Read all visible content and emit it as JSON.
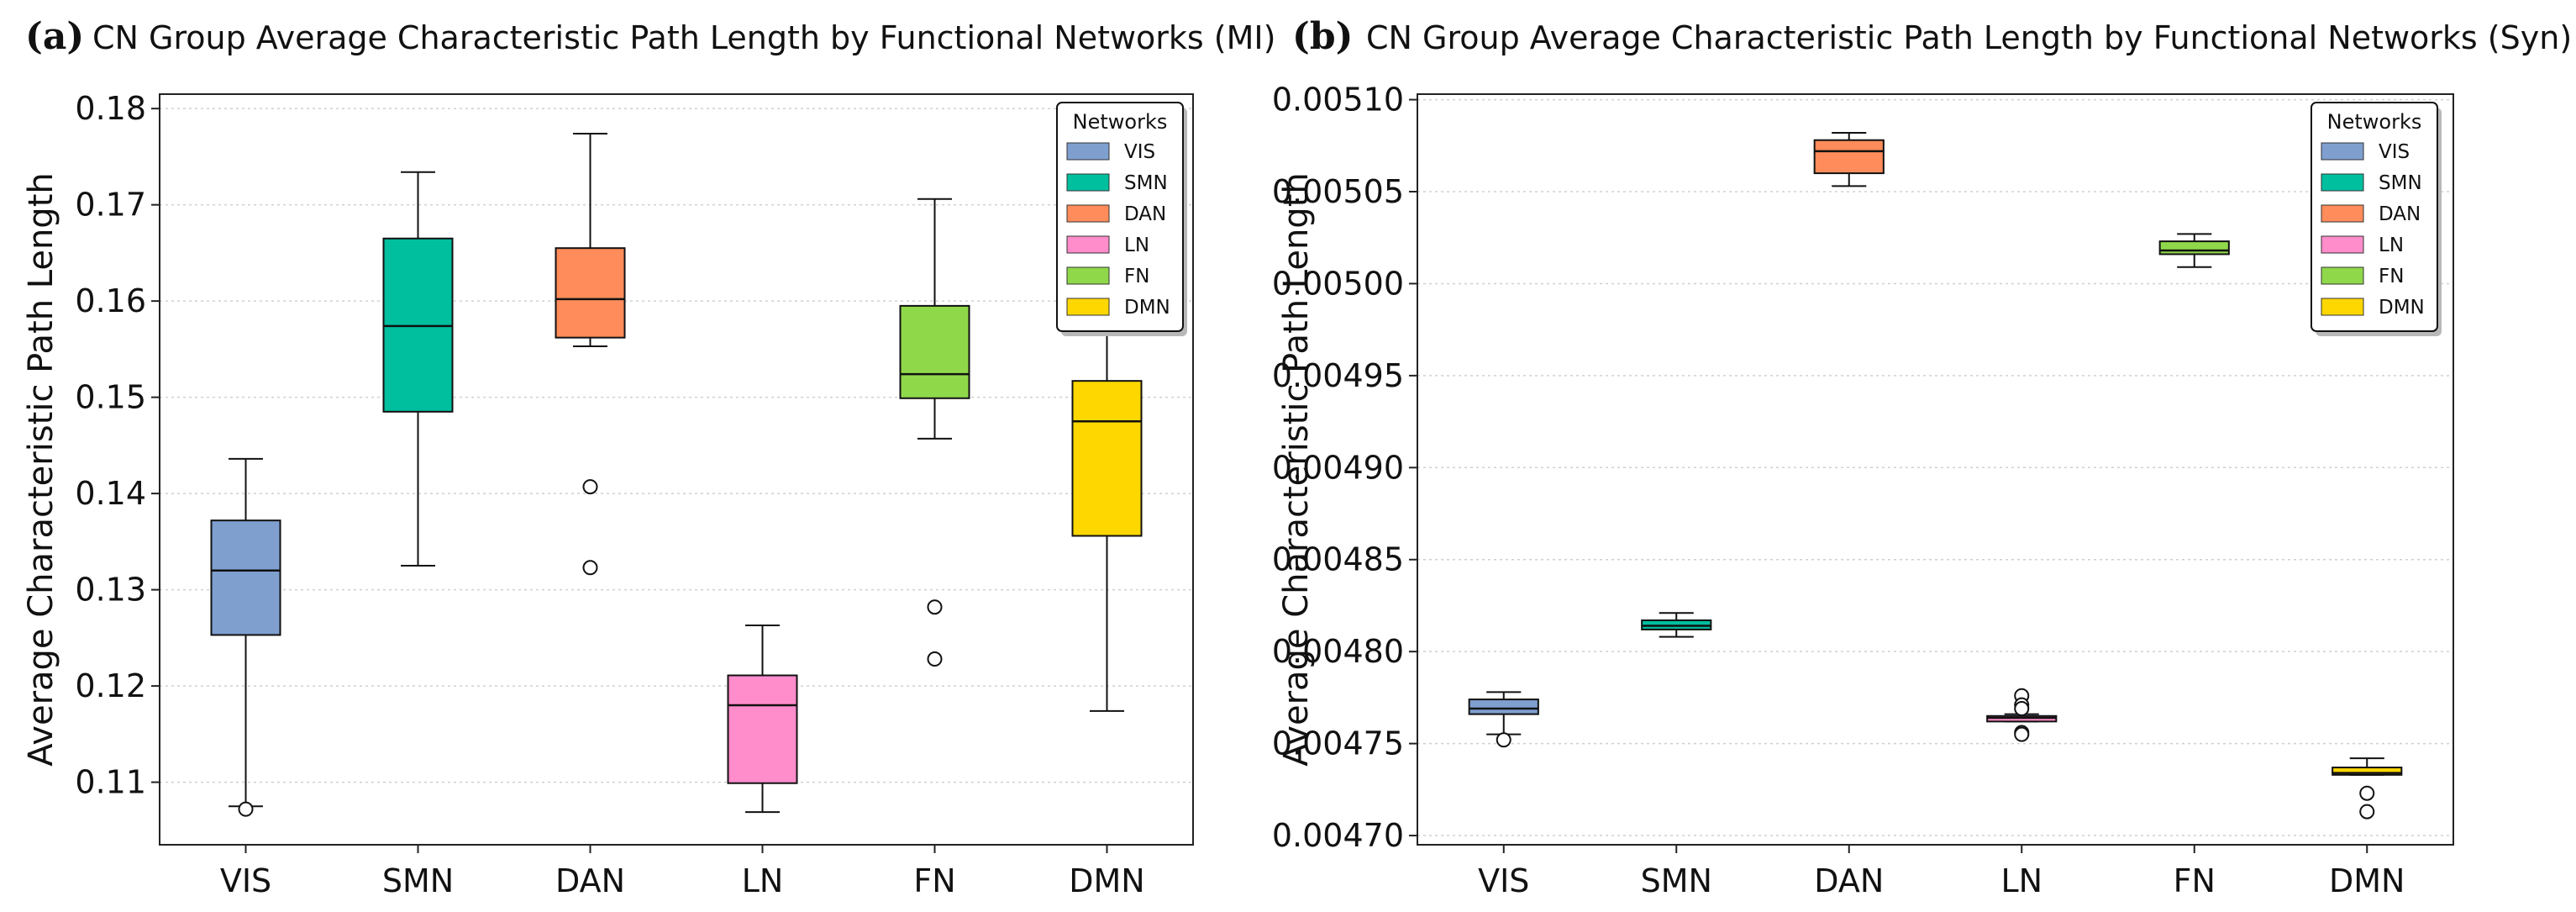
{
  "chart_data": [
    {
      "panel": "(a)",
      "type": "box",
      "title": "CN Group Average Characteristic Path Length by Functional Networks (MI)",
      "xlabel": "",
      "ylabel": "Average Characteristic Path Length",
      "ylim": [
        0.1035,
        0.1815
      ],
      "yticks": [
        "0.11",
        "0.12",
        "0.13",
        "0.14",
        "0.15",
        "0.16",
        "0.17",
        "0.18"
      ],
      "ytick_values": [
        0.11,
        0.12,
        0.13,
        0.14,
        0.15,
        0.16,
        0.17,
        0.18
      ],
      "grid": "horizontal dotted",
      "legend": {
        "title": "Networks",
        "placement": "top-right"
      },
      "categories": [
        "VIS",
        "SMN",
        "DAN",
        "LN",
        "FN",
        "DMN"
      ],
      "colors": [
        "#7f9fcf",
        "#00bf9f",
        "#ff8c5a",
        "#ff8ccb",
        "#8fd84a",
        "#ffd700"
      ],
      "boxes": [
        {
          "whisker_low": 0.1075,
          "q1": 0.1253,
          "median": 0.132,
          "q3": 0.1372,
          "whisker_high": 0.1436,
          "outliers": [
            0.1072
          ]
        },
        {
          "whisker_low": 0.1325,
          "q1": 0.1485,
          "median": 0.1574,
          "q3": 0.1665,
          "whisker_high": 0.1734,
          "outliers": []
        },
        {
          "whisker_low": 0.1553,
          "q1": 0.1562,
          "median": 0.1602,
          "q3": 0.1655,
          "whisker_high": 0.1774,
          "outliers": [
            0.1407,
            0.1323
          ]
        },
        {
          "whisker_low": 0.1069,
          "q1": 0.1099,
          "median": 0.118,
          "q3": 0.1211,
          "whisker_high": 0.1263,
          "outliers": []
        },
        {
          "whisker_low": 0.1457,
          "q1": 0.1499,
          "median": 0.1524,
          "q3": 0.1595,
          "whisker_high": 0.1706,
          "outliers": [
            0.1282,
            0.1228
          ]
        },
        {
          "whisker_low": 0.1174,
          "q1": 0.1356,
          "median": 0.1475,
          "q3": 0.1517,
          "whisker_high": 0.164,
          "outliers": []
        }
      ]
    },
    {
      "panel": "(b)",
      "type": "box",
      "title": "CN Group Average Characteristic Path Length by Functional Networks (Syn)",
      "xlabel": "",
      "ylabel": "Average Characteristic Path Length",
      "ylim": [
        0.004695,
        0.005103
      ],
      "yticks": [
        "0.00470",
        "0.00475",
        "0.00480",
        "0.00485",
        "0.00490",
        "0.00495",
        "0.00500",
        "0.00505",
        "0.00510"
      ],
      "ytick_values": [
        0.0047,
        0.00475,
        0.0048,
        0.00485,
        0.0049,
        0.00495,
        0.005,
        0.00505,
        0.0051
      ],
      "grid": "horizontal dotted",
      "legend": {
        "title": "Networks",
        "placement": "top-right"
      },
      "categories": [
        "VIS",
        "SMN",
        "DAN",
        "LN",
        "FN",
        "DMN"
      ],
      "colors": [
        "#7f9fcf",
        "#00bf9f",
        "#ff8c5a",
        "#ff8ccb",
        "#8fd84a",
        "#ffd700"
      ],
      "boxes": [
        {
          "whisker_low": 0.004755,
          "q1": 0.004766,
          "median": 0.004769,
          "q3": 0.004774,
          "whisker_high": 0.004778,
          "outliers": [
            0.004752
          ]
        },
        {
          "whisker_low": 0.004808,
          "q1": 0.004812,
          "median": 0.004814,
          "q3": 0.004817,
          "whisker_high": 0.004821,
          "outliers": []
        },
        {
          "whisker_low": 0.005053,
          "q1": 0.00506,
          "median": 0.005072,
          "q3": 0.005078,
          "whisker_high": 0.005082,
          "outliers": []
        },
        {
          "whisker_low": 0.004762,
          "q1": 0.004762,
          "median": 0.004764,
          "q3": 0.004765,
          "whisker_high": 0.004766,
          "outliers": [
            0.004776,
            0.004771,
            0.004769,
            0.004756,
            0.004755
          ]
        },
        {
          "whisker_low": 0.005009,
          "q1": 0.005016,
          "median": 0.005018,
          "q3": 0.005023,
          "whisker_high": 0.005027,
          "outliers": []
        },
        {
          "whisker_low": 0.004733,
          "q1": 0.004733,
          "median": 0.004734,
          "q3": 0.004737,
          "whisker_high": 0.004742,
          "outliers": [
            0.004723,
            0.004713
          ]
        }
      ]
    }
  ]
}
